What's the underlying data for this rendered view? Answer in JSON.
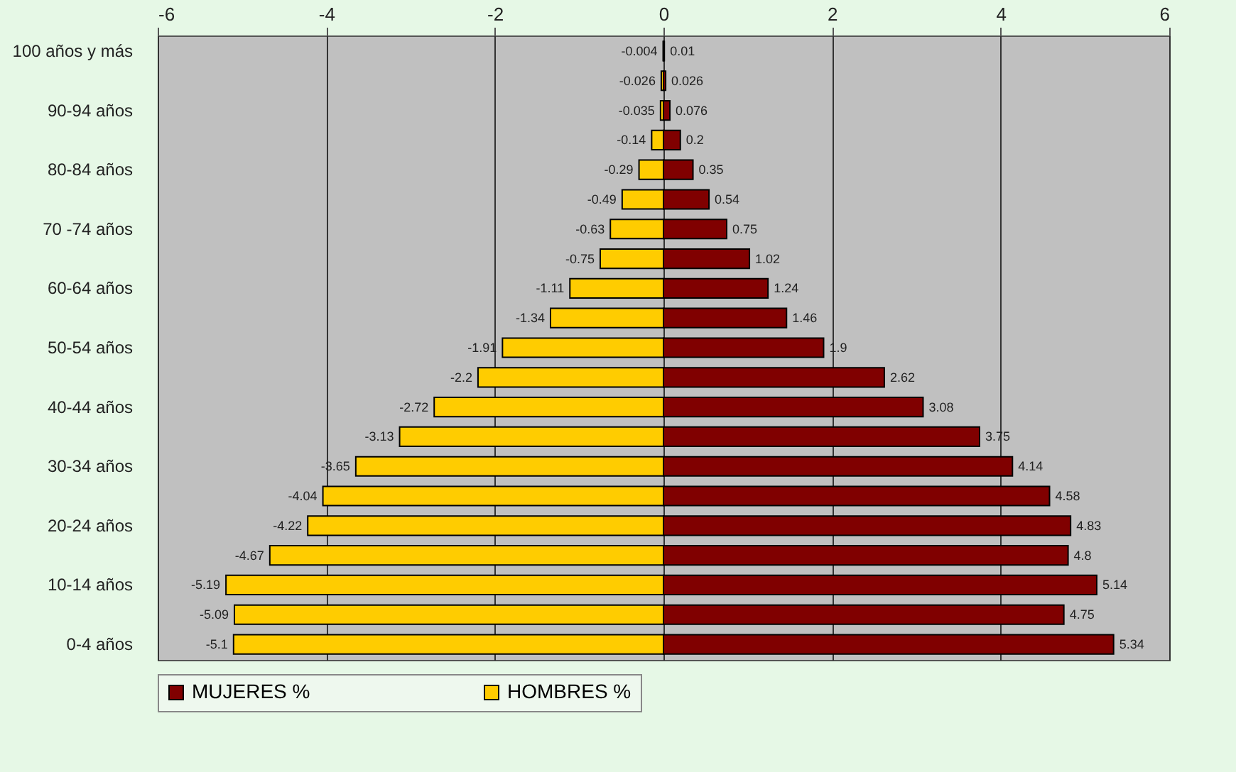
{
  "chart_data": {
    "type": "bar",
    "orientation": "horizontal",
    "categories": [
      "100 años y más",
      null,
      "90-94 años",
      null,
      "80-84 años",
      null,
      "70 -74 años",
      null,
      "60-64 años",
      null,
      "50-54 años",
      null,
      "40-44 años",
      null,
      "30-34 años",
      null,
      "20-24 años",
      null,
      "10-14 años",
      null,
      "0-4 años"
    ],
    "series": [
      {
        "name": "MUJERES %",
        "color": "#800000",
        "values": [
          0.01,
          0.026,
          0.076,
          0.2,
          0.35,
          0.54,
          0.75,
          1.02,
          1.24,
          1.46,
          1.9,
          2.62,
          3.08,
          3.75,
          4.14,
          4.58,
          4.83,
          4.8,
          5.14,
          4.75,
          5.34
        ]
      },
      {
        "name": "HOMBRES %",
        "color": "#ffcc00",
        "values": [
          -0.004,
          -0.026,
          -0.035,
          -0.14,
          -0.29,
          -0.49,
          -0.63,
          -0.75,
          -1.11,
          -1.34,
          -1.91,
          -2.2,
          -2.72,
          -3.13,
          -3.65,
          -4.04,
          -4.22,
          -4.67,
          -5.19,
          -5.09,
          -5.1
        ]
      }
    ],
    "stacked": true,
    "xlim": [
      -6,
      6
    ],
    "xticks": [
      -6,
      -4,
      -2,
      0,
      2,
      4,
      6
    ],
    "grid": "x",
    "legend": "bottom",
    "data_labels": true
  }
}
